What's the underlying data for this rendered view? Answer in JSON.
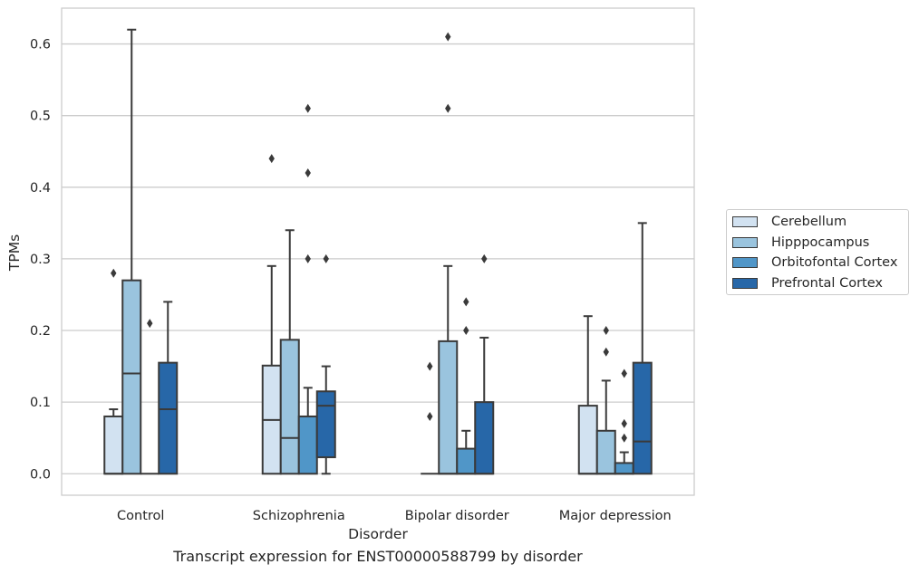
{
  "chart_data": {
    "type": "box",
    "caption": "Transcript expression for ENST00000588799 by disorder",
    "xlabel": "Disorder",
    "ylabel": "TPMs",
    "categories": [
      "Control",
      "Schizophrenia",
      "Bipolar disorder",
      "Major depression"
    ],
    "ylim": [
      -0.03,
      0.65
    ],
    "yticks": [
      0.0,
      0.1,
      0.2,
      0.3,
      0.4,
      0.5,
      0.6
    ],
    "ytick_labels": [
      "0.0",
      "0.1",
      "0.2",
      "0.3",
      "0.4",
      "0.5",
      "0.6"
    ],
    "grid": true,
    "legend_position": "right",
    "series": [
      {
        "name": "Cerebellum",
        "color": "#d2e2f1",
        "boxes": [
          {
            "whisker_low": 0.0,
            "q1": 0.0,
            "median": 0.0,
            "q3": 0.08,
            "whisker_high": 0.09,
            "outliers": [
              0.28
            ]
          },
          {
            "whisker_low": 0.0,
            "q1": 0.0,
            "median": 0.075,
            "q3": 0.151,
            "whisker_high": 0.29,
            "outliers": [
              0.44
            ]
          },
          {
            "whisker_low": 0.0,
            "q1": 0.0,
            "median": 0.0,
            "q3": 0.0,
            "whisker_high": 0.0,
            "outliers": [
              0.08,
              0.15
            ]
          },
          {
            "whisker_low": 0.0,
            "q1": 0.0,
            "median": 0.0,
            "q3": 0.095,
            "whisker_high": 0.22,
            "outliers": []
          }
        ]
      },
      {
        "name": "Hipppocampus",
        "color": "#9ac4de",
        "boxes": [
          {
            "whisker_low": 0.0,
            "q1": 0.0,
            "median": 0.14,
            "q3": 0.27,
            "whisker_high": 0.62,
            "outliers": []
          },
          {
            "whisker_low": 0.0,
            "q1": 0.0,
            "median": 0.05,
            "q3": 0.187,
            "whisker_high": 0.34,
            "outliers": []
          },
          {
            "whisker_low": 0.0,
            "q1": 0.0,
            "median": 0.0,
            "q3": 0.185,
            "whisker_high": 0.29,
            "outliers": [
              0.51,
              0.61
            ]
          },
          {
            "whisker_low": 0.0,
            "q1": 0.0,
            "median": 0.0,
            "q3": 0.06,
            "whisker_high": 0.13,
            "outliers": [
              0.17,
              0.2
            ]
          }
        ]
      },
      {
        "name": "Orbitofontal Cortex",
        "color": "#5096c8",
        "boxes": [
          {
            "whisker_low": 0.0,
            "q1": 0.0,
            "median": 0.0,
            "q3": 0.0,
            "whisker_high": 0.0,
            "outliers": [
              0.21
            ]
          },
          {
            "whisker_low": 0.0,
            "q1": 0.0,
            "median": 0.08,
            "q3": 0.08,
            "whisker_high": 0.12,
            "outliers": [
              0.3,
              0.42,
              0.51
            ]
          },
          {
            "whisker_low": 0.0,
            "q1": 0.0,
            "median": 0.0,
            "q3": 0.035,
            "whisker_high": 0.06,
            "outliers": [
              0.2,
              0.24
            ]
          },
          {
            "whisker_low": 0.0,
            "q1": 0.0,
            "median": 0.0,
            "q3": 0.015,
            "whisker_high": 0.03,
            "outliers": [
              0.05,
              0.07,
              0.14
            ]
          }
        ]
      },
      {
        "name": "Prefrontal Cortex",
        "color": "#2767a8",
        "boxes": [
          {
            "whisker_low": 0.0,
            "q1": 0.0,
            "median": 0.09,
            "q3": 0.155,
            "whisker_high": 0.24,
            "outliers": []
          },
          {
            "whisker_low": 0.0,
            "q1": 0.023,
            "median": 0.095,
            "q3": 0.115,
            "whisker_high": 0.15,
            "outliers": [
              0.3
            ]
          },
          {
            "whisker_low": 0.0,
            "q1": 0.0,
            "median": 0.0,
            "q3": 0.1,
            "whisker_high": 0.19,
            "outliers": [
              0.3
            ]
          },
          {
            "whisker_low": 0.0,
            "q1": 0.0,
            "median": 0.045,
            "q3": 0.155,
            "whisker_high": 0.35,
            "outliers": []
          }
        ]
      }
    ]
  }
}
